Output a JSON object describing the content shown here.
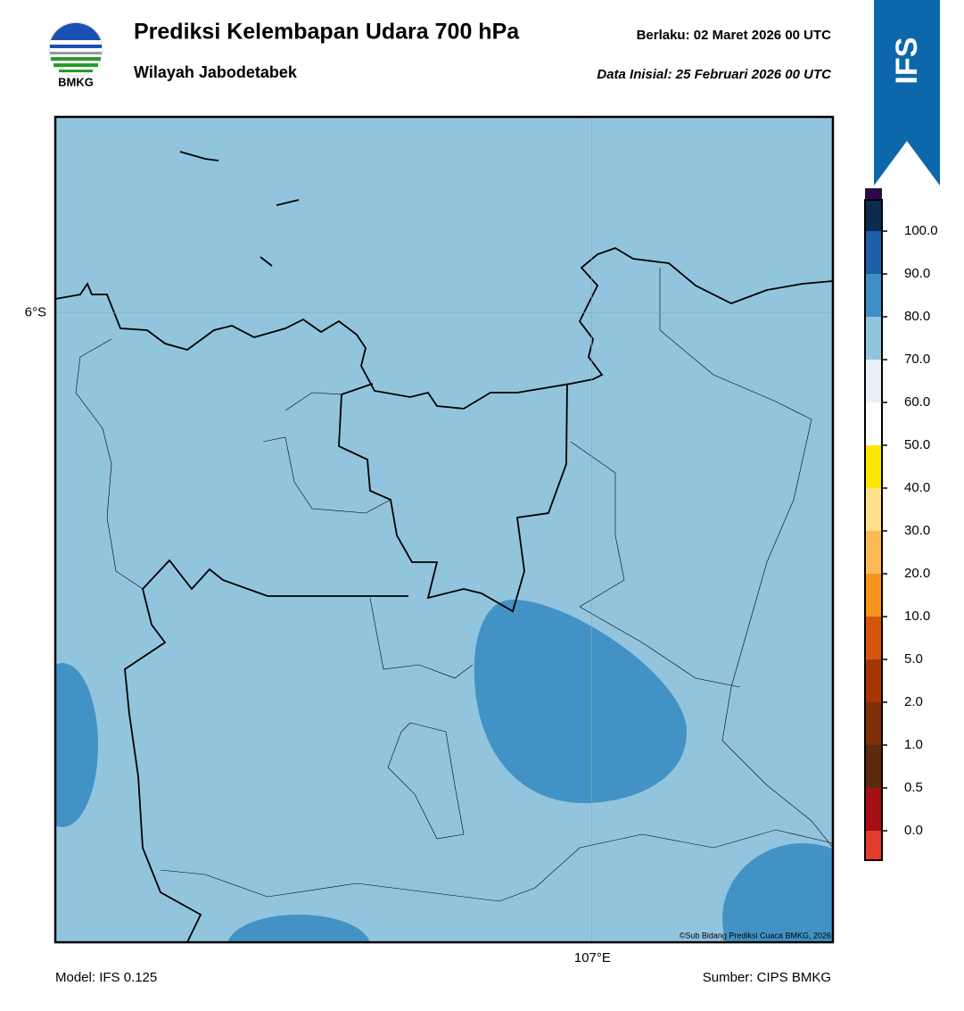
{
  "header": {
    "title": "Prediksi Kelembapan Udara 700 hPa",
    "subtitle": "Wilayah Jabodetabek",
    "valid": "Berlaku:  02 Maret 2026 00 UTC",
    "init": "Data Inisial:  25 Februari 2026 00 UTC",
    "logo_text": "BMKG",
    "badge": "IFS"
  },
  "map": {
    "xlim": [
      106.0,
      107.45
    ],
    "ylim": [
      -7.22,
      -5.62
    ],
    "xticks": [
      {
        "value": 107,
        "label": "107°E"
      }
    ],
    "yticks": [
      {
        "value": -6,
        "label": "6°S"
      }
    ],
    "grid": true,
    "background": "#92c4de",
    "credit": "©Sub Bidang Prediksi Cuaca BMKG, 2026"
  },
  "colorbar": {
    "ticks": [
      {
        "value": 0,
        "label": "0.0"
      },
      {
        "value": 0.5,
        "label": "0.5"
      },
      {
        "value": 1,
        "label": "1.0"
      },
      {
        "value": 2,
        "label": "2.0"
      },
      {
        "value": 5,
        "label": "5.0"
      },
      {
        "value": 10,
        "label": "10.0"
      },
      {
        "value": 20,
        "label": "20.0"
      },
      {
        "value": 30,
        "label": "30.0"
      },
      {
        "value": 40,
        "label": "40.0"
      },
      {
        "value": 50,
        "label": "50.0"
      },
      {
        "value": 60,
        "label": "60.0"
      },
      {
        "value": 70,
        "label": "70.0"
      },
      {
        "value": 80,
        "label": "80.0"
      },
      {
        "value": 90,
        "label": "90.0"
      },
      {
        "value": 100,
        "label": "100.0"
      }
    ],
    "colors": [
      "#e33b2d",
      "#a50f15",
      "#5c2a0f",
      "#7f2f08",
      "#a63603",
      "#d4550b",
      "#f7941d",
      "#fdb957",
      "#fee08b",
      "#ffe600",
      "#ffffff",
      "#e9f1f6",
      "#92c4de",
      "#3e8fc6",
      "#1d5fa8",
      "#0b2a50",
      "#2c0a4a"
    ]
  },
  "footer": {
    "model": "Model: IFS 0.125",
    "source": "Sumber: CIPS BMKG"
  }
}
